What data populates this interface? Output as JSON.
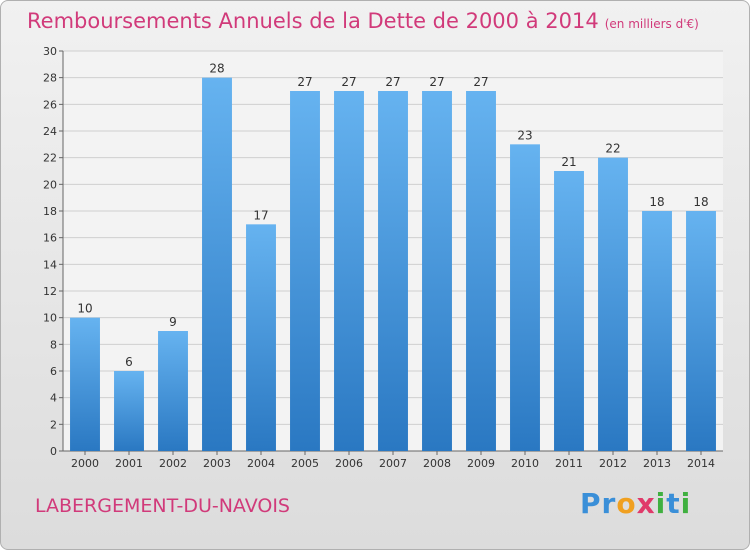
{
  "title": "Remboursements Annuels de la Dette de 2000 à 2014",
  "unit_note": "(en milliers d'€)",
  "town": "LABERGEMENT-DU-NAVOIS",
  "logo": {
    "text": "Proxiti",
    "letters": [
      {
        "ch": "P",
        "color": "#3a8fd8"
      },
      {
        "ch": "r",
        "color": "#3a8fd8"
      },
      {
        "ch": "o",
        "color": "#f0a020"
      },
      {
        "ch": "x",
        "color": "#e03a6a"
      },
      {
        "ch": "i",
        "color": "#40b040"
      },
      {
        "ch": "t",
        "color": "#3a8fd8"
      },
      {
        "ch": "i",
        "color": "#40b040"
      }
    ]
  },
  "colors": {
    "bar_light": "#66b3f0",
    "bar_dark": "#2a78c2",
    "title": "#d13a7a"
  },
  "chart_data": {
    "type": "bar",
    "categories": [
      "2000",
      "2001",
      "2002",
      "2003",
      "2004",
      "2005",
      "2006",
      "2007",
      "2008",
      "2009",
      "2010",
      "2011",
      "2012",
      "2013",
      "2014"
    ],
    "values": [
      10,
      6,
      9,
      28,
      17,
      27,
      27,
      27,
      27,
      27,
      23,
      21,
      22,
      18,
      18
    ],
    "ylim": [
      0,
      30
    ],
    "yticks": [
      0,
      2,
      4,
      6,
      8,
      10,
      12,
      14,
      16,
      18,
      20,
      22,
      24,
      26,
      28,
      30
    ],
    "grid": true
  }
}
